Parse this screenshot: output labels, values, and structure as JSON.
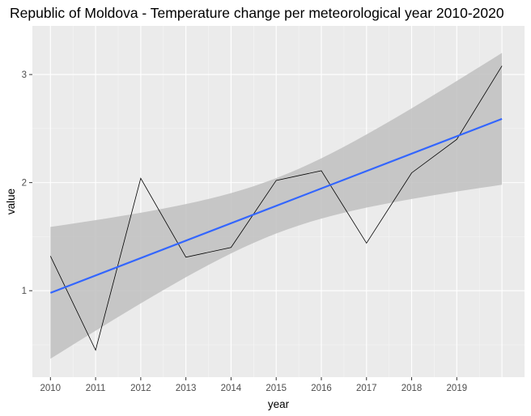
{
  "chart_data": {
    "type": "line",
    "title": "Republic of Moldova - Temperature change per meteorological year 2010-2020",
    "xlabel": "year",
    "ylabel": "value",
    "x": [
      2010,
      2011,
      2012,
      2013,
      2014,
      2015,
      2016,
      2017,
      2018,
      2019,
      2020
    ],
    "x_tick_labels": [
      "2010",
      "2011",
      "2012",
      "2013",
      "2014",
      "2015",
      "2016",
      "2017",
      "2018",
      "2019"
    ],
    "xlim": [
      2009.6,
      2020.5
    ],
    "y_ticks": [
      1,
      2,
      3
    ],
    "y_tick_labels": [
      "1",
      "2",
      "3"
    ],
    "ylim": [
      0.2,
      3.45
    ],
    "grid": true,
    "series": [
      {
        "values": [
          1.32,
          0.45,
          2.04,
          1.31,
          1.4,
          2.02,
          2.11,
          1.44,
          2.09,
          2.4,
          3.08
        ],
        "color": "#000000"
      }
    ],
    "trend": {
      "method": "linear",
      "color": "#3366ff",
      "band_color": "#bfbfbf",
      "fit": [
        0.98,
        2.59
      ],
      "band_lower": [
        0.37,
        1.99
      ],
      "band_upper": [
        1.59,
        3.2
      ],
      "band_curve": [
        1.27,
        1.5,
        1.73,
        1.94,
        2.11,
        2.22,
        2.2
      ]
    }
  }
}
